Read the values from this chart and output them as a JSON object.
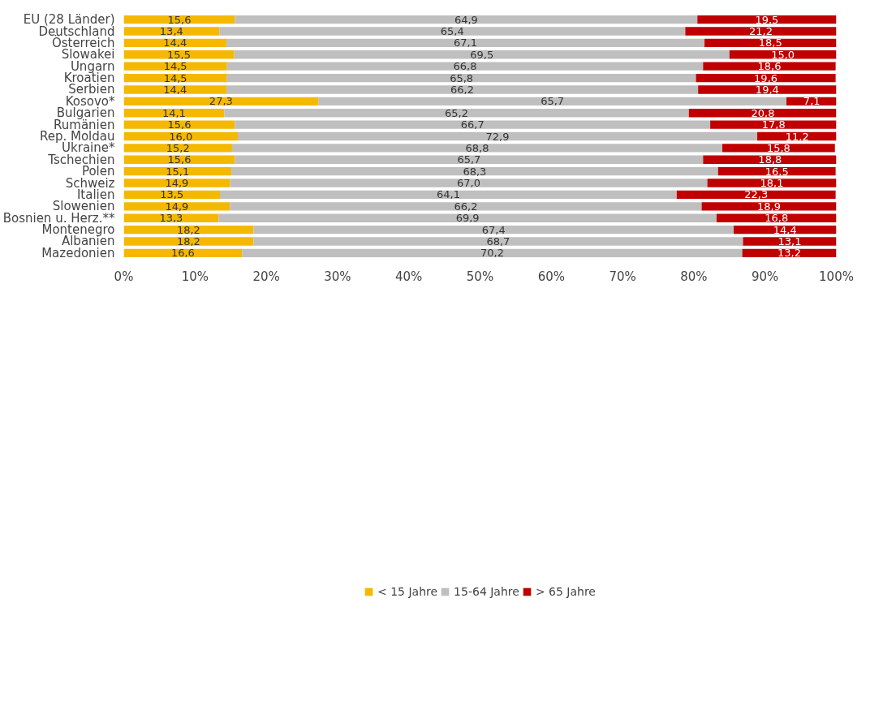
{
  "chart_data": {
    "type": "bar",
    "orientation": "horizontal",
    "stacked": true,
    "grid": false,
    "legend": "bottom",
    "categories": [
      "EU (28 Länder)",
      "Deutschland",
      "Österreich",
      "Slowakei",
      "Ungarn",
      "Kroatien",
      "Serbien",
      "Kosovo*",
      "Bulgarien",
      "Rumänien",
      "Rep. Moldau",
      "Ukraine*",
      "Tschechien",
      "Polen",
      "Schweiz",
      "Italien",
      "Slowenien",
      "Bosnien u. Herz.**",
      "Montenegro",
      "Albanien",
      "Mazedonien"
    ],
    "xlim": [
      0,
      100
    ],
    "xticks": [
      {
        "value": 0,
        "label": "0%"
      },
      {
        "value": 10,
        "label": "10%"
      },
      {
        "value": 20,
        "label": "20%"
      },
      {
        "value": 30,
        "label": "30%"
      },
      {
        "value": 40,
        "label": "40%"
      },
      {
        "value": 50,
        "label": "50%"
      },
      {
        "value": 60,
        "label": "60%"
      },
      {
        "value": 70,
        "label": "70%"
      },
      {
        "value": 80,
        "label": "80%"
      },
      {
        "value": 90,
        "label": "90%"
      },
      {
        "value": 100,
        "label": "100%"
      }
    ],
    "series": [
      {
        "name": "< 15 Jahre",
        "color": "#f5b800",
        "values": [
          15.6,
          13.4,
          14.4,
          15.5,
          14.5,
          14.5,
          14.4,
          27.3,
          14.1,
          15.6,
          16.0,
          15.2,
          15.6,
          15.1,
          14.9,
          13.5,
          14.9,
          13.3,
          18.2,
          18.2,
          16.6
        ],
        "value_labels": [
          "15,6",
          "13,4",
          "14,4",
          "15,5",
          "14,5",
          "14,5",
          "14,4",
          "27,3",
          "14,1",
          "15,6",
          "16,0",
          "15,2",
          "15,6",
          "15,1",
          "14,9",
          "13,5",
          "14,9",
          "13,3",
          "18,2",
          "18,2",
          "16,6"
        ]
      },
      {
        "name": "15-64 Jahre",
        "color": "#bfbfbf",
        "values": [
          64.9,
          65.4,
          67.1,
          69.5,
          66.8,
          65.8,
          66.2,
          65.7,
          65.2,
          66.7,
          72.9,
          68.8,
          65.7,
          68.3,
          67.0,
          64.1,
          66.2,
          69.9,
          67.4,
          68.7,
          70.2
        ],
        "value_labels": [
          "64,9",
          "65,4",
          "67,1",
          "69,5",
          "66,8",
          "65,8",
          "66,2",
          "65,7",
          "65,2",
          "66,7",
          "72,9",
          "68,8",
          "65,7",
          "68,3",
          "67,0",
          "64,1",
          "66,2",
          "69,9",
          "67,4",
          "68,7",
          "70,2"
        ]
      },
      {
        "name": "> 65 Jahre",
        "color": "#c00000",
        "values": [
          19.5,
          21.2,
          18.5,
          15.0,
          18.6,
          19.6,
          19.4,
          7.1,
          20.8,
          17.8,
          11.2,
          15.8,
          18.8,
          16.5,
          18.1,
          22.3,
          18.9,
          16.8,
          14.4,
          13.1,
          13.2
        ],
        "value_labels": [
          "19,5",
          "21,2",
          "18,5",
          "15,0",
          "18,6",
          "19,6",
          "19,4",
          "7,1",
          "20,8",
          "17,8",
          "11,2",
          "15,8",
          "18,8",
          "16,5",
          "18,1",
          "22,3",
          "18,9",
          "16,8",
          "14,4",
          "13,1",
          "13,2"
        ]
      }
    ]
  }
}
